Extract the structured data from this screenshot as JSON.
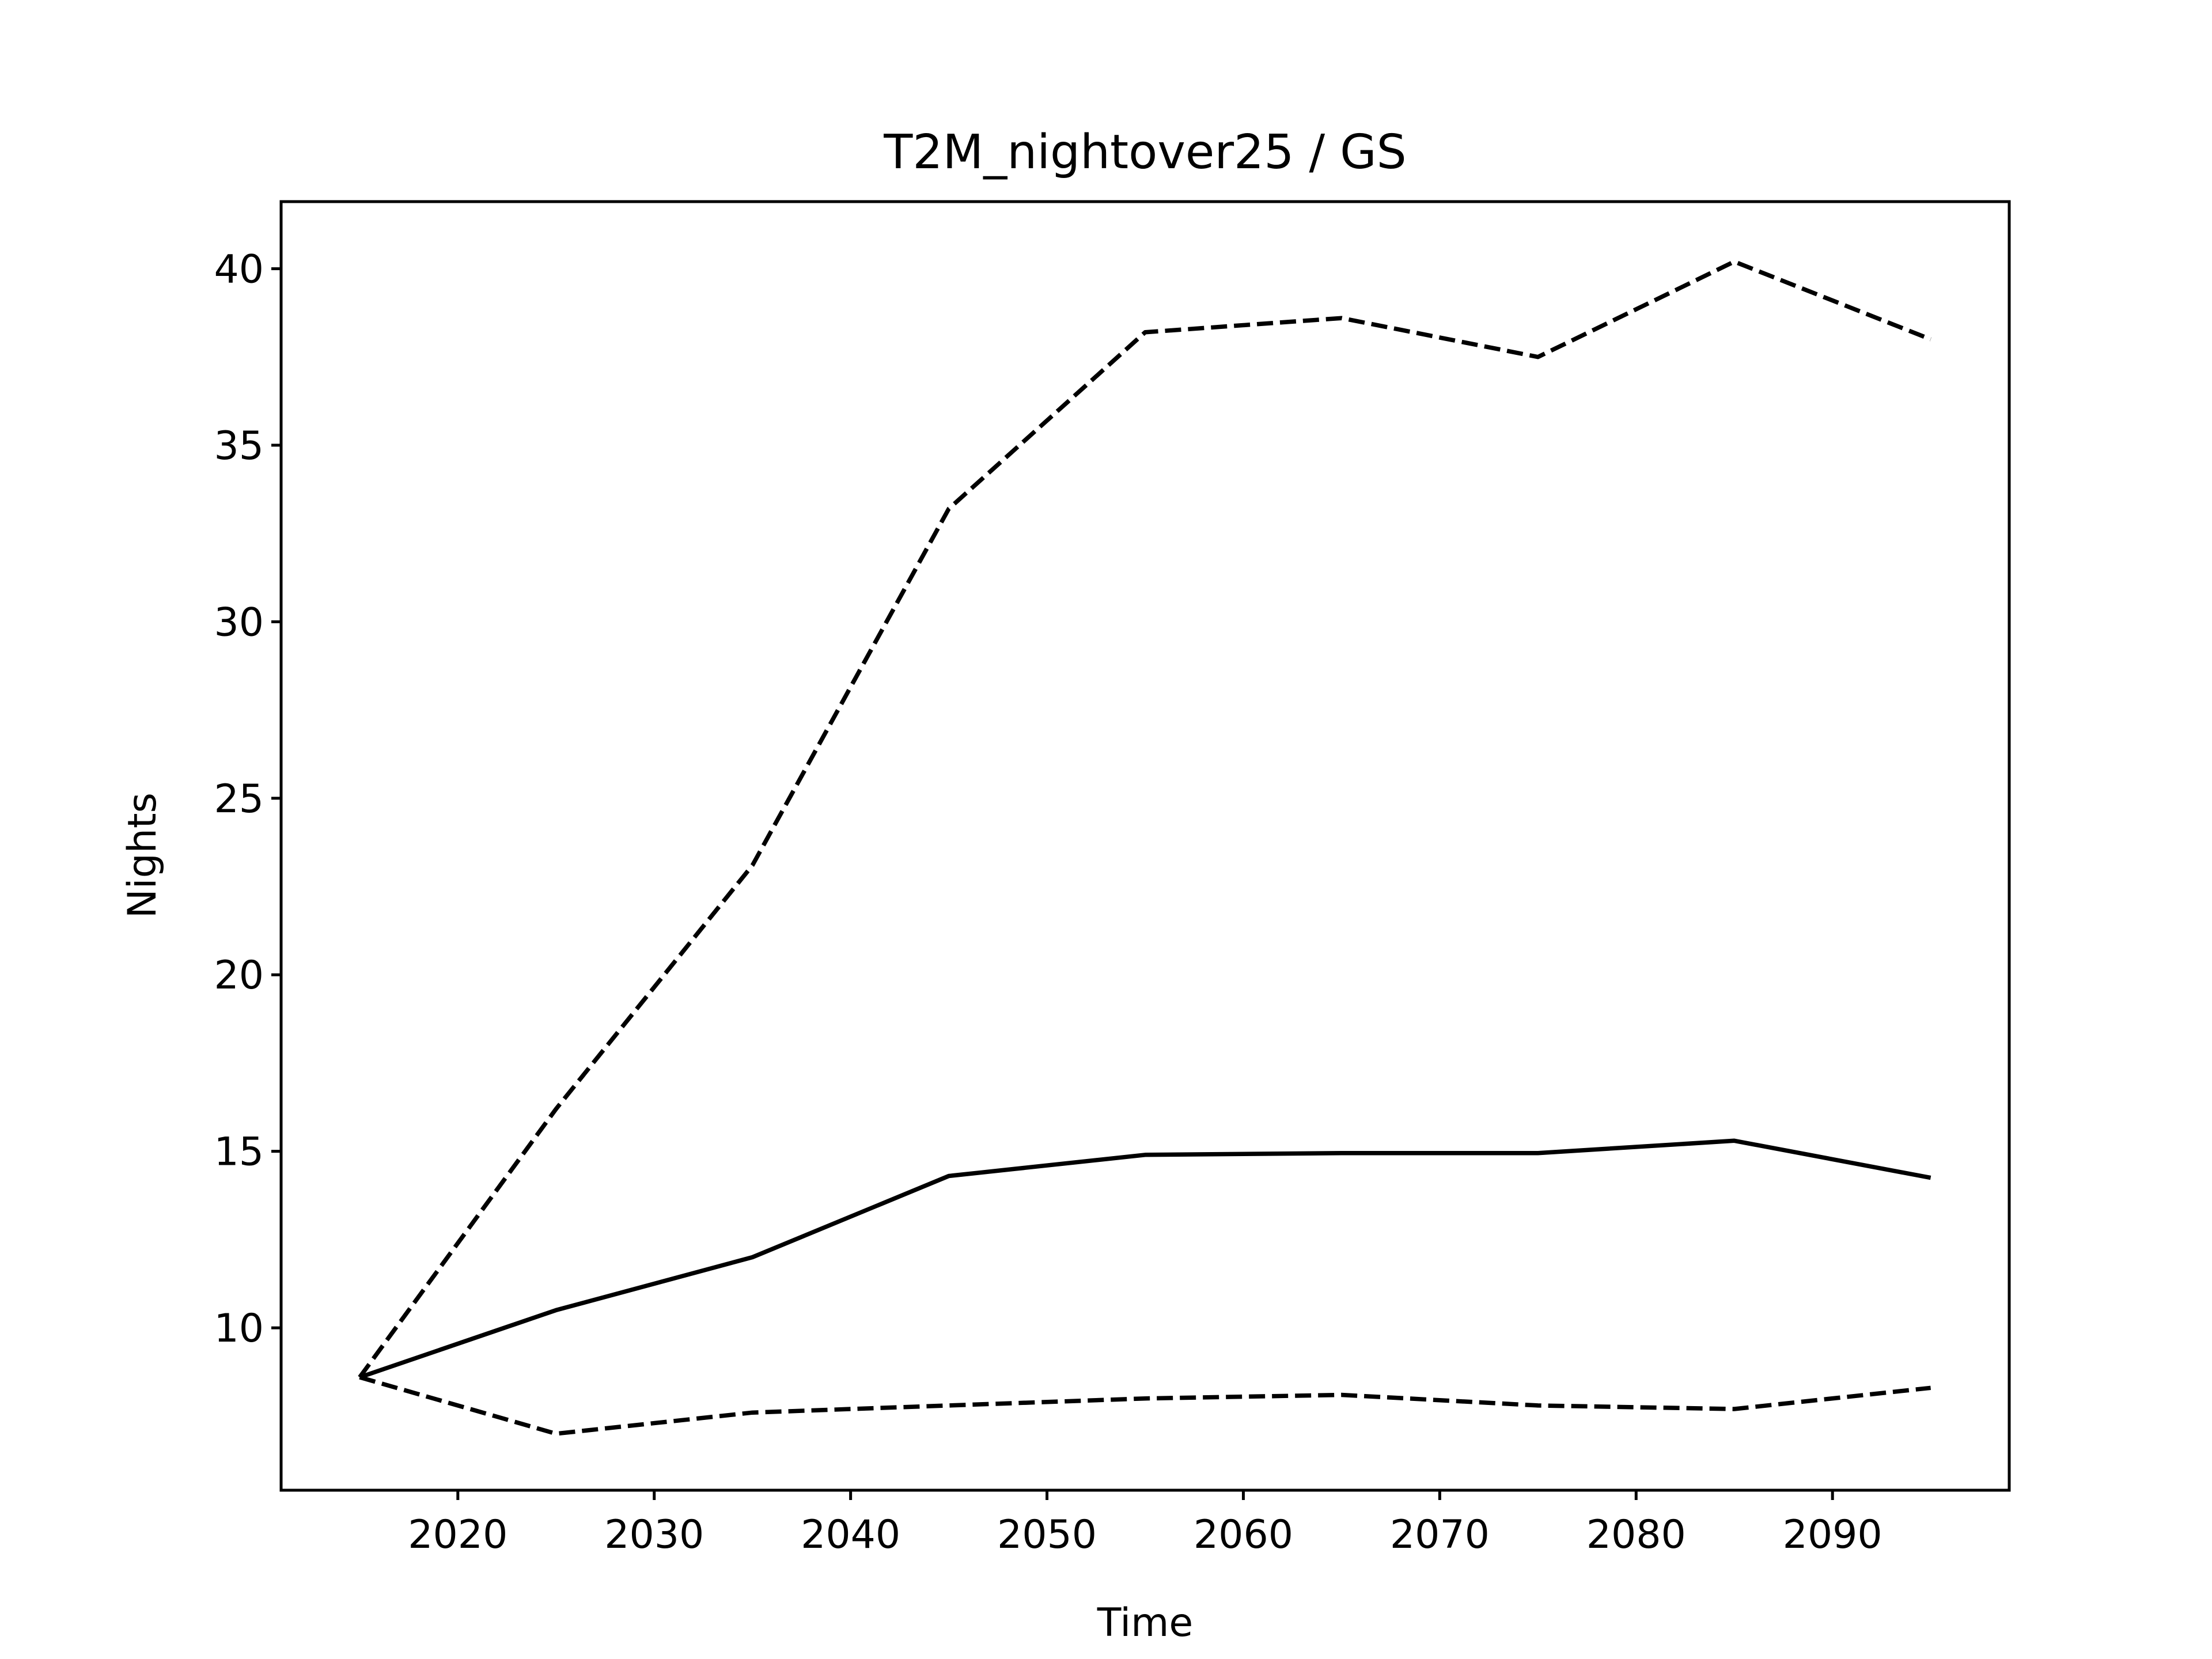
{
  "chart_data": {
    "type": "line",
    "title": "T2M_nightover25 / GS",
    "xlabel": "Time",
    "ylabel": "Nights",
    "xlim": [
      2011,
      2099
    ],
    "ylim": [
      5.4,
      41.9
    ],
    "xticks": [
      2020,
      2030,
      2040,
      2050,
      2060,
      2070,
      2080,
      2090
    ],
    "yticks": [
      10,
      15,
      20,
      25,
      30,
      35,
      40
    ],
    "grid": false,
    "legend": false,
    "x": [
      2015,
      2025,
      2035,
      2045,
      2055,
      2065,
      2075,
      2085,
      2095
    ],
    "series": [
      {
        "style": "solid",
        "color": "#000000",
        "values": [
          8.6,
          10.5,
          12.0,
          14.3,
          14.9,
          14.95,
          14.95,
          15.3,
          14.25
        ]
      },
      {
        "style": "dashed",
        "color": "#000000",
        "values": [
          8.6,
          16.2,
          23.1,
          33.2,
          38.2,
          38.6,
          37.5,
          40.2,
          38.0
        ]
      },
      {
        "style": "dashed",
        "color": "#000000",
        "values": [
          8.6,
          7.0,
          7.6,
          7.8,
          8.0,
          8.1,
          7.8,
          7.7,
          8.3
        ]
      }
    ]
  }
}
